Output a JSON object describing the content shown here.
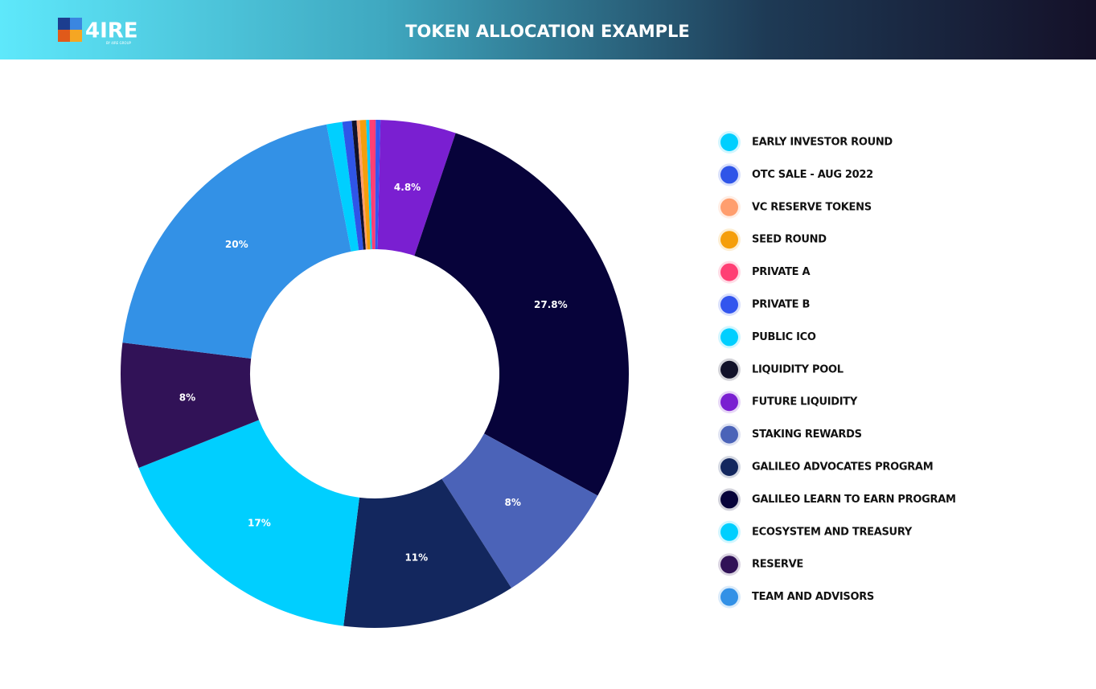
{
  "brand": {
    "name": "4IRE",
    "tagline": "BY 4IRE GROUP"
  },
  "chart_data": {
    "type": "donut",
    "title": "TOKEN ALLOCATION EXAMPLE",
    "categories": [
      "EARLY INVESTOR ROUND",
      "OTC SALE - AUG 2022",
      "VC RESERVE TOKENS",
      "SEED ROUND",
      "PRIVATE A",
      "PRIVATE B",
      "PUBLIC ICO",
      "LIQUIDITY POOL",
      "FUTURE LIQUIDITY",
      "STAKING REWARDS",
      "GALILEO ADVOCATES PROGRAM",
      "GALILEO LEARN TO EARN PROGRAM",
      "ECOSYSTEM AND TREASURY",
      "RESERVE",
      "TEAM AND ADVISORS"
    ],
    "values": [
      1.0,
      0.6,
      0.2,
      0.4,
      0.4,
      0.3,
      0.2,
      0.3,
      4.8,
      8,
      11,
      27.8,
      17,
      8,
      20
    ],
    "value_labels": [
      null,
      null,
      null,
      null,
      null,
      null,
      null,
      null,
      "4.8%",
      "8%",
      "11%",
      "27.8%",
      "17%",
      "8%",
      "20%"
    ],
    "colors": [
      "#00cfff",
      "#2f55e8",
      "#ff9e6e",
      "#f59e0b",
      "#ff3f74",
      "#3355ee",
      "#00cfff",
      "#12122a",
      "#7a1fd1",
      "#4b63b8",
      "#13275e",
      "#07033a",
      "#00cfff",
      "#311257",
      "#3391e6"
    ],
    "legend": "right"
  }
}
